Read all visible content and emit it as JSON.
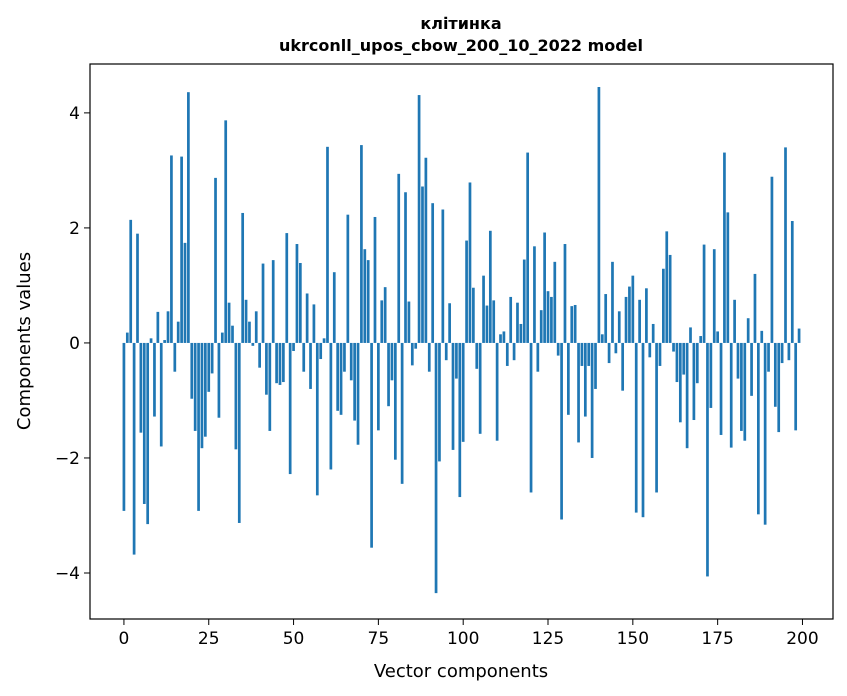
{
  "chart_data": {
    "type": "bar",
    "title": "клітинка",
    "subtitle": "ukrconll_upos_cbow_200_10_2022 model",
    "xlabel": "Vector components",
    "ylabel": "Components values",
    "xlim": [
      -10,
      209
    ],
    "ylim": [
      -4.8,
      4.85
    ],
    "xticks": [
      0,
      25,
      50,
      75,
      100,
      125,
      150,
      175,
      200
    ],
    "yticks": [
      -4,
      -2,
      0,
      2,
      4
    ],
    "ytick_labels": [
      "−4",
      "−2",
      "0",
      "2",
      "4"
    ],
    "grid": false,
    "bar_color": "#1f77b4",
    "values": [
      -2.92,
      0.18,
      2.14,
      -3.68,
      1.9,
      -1.56,
      -2.8,
      -3.15,
      0.08,
      -1.28,
      0.54,
      -1.8,
      0.05,
      0.55,
      3.26,
      -0.5,
      0.37,
      3.24,
      1.74,
      4.36,
      -0.97,
      -1.53,
      -2.92,
      -1.83,
      -1.63,
      -0.85,
      -0.53,
      2.87,
      -1.3,
      0.18,
      3.87,
      0.7,
      0.3,
      -1.85,
      -3.13,
      2.26,
      0.75,
      0.37,
      -0.05,
      0.55,
      -0.43,
      1.38,
      -0.9,
      -1.53,
      1.44,
      -0.7,
      -0.73,
      -0.68,
      1.91,
      -2.28,
      -0.14,
      1.72,
      1.39,
      -0.5,
      0.86,
      -0.8,
      0.67,
      -2.65,
      -0.28,
      0.08,
      3.41,
      -2.2,
      1.23,
      -1.18,
      -1.25,
      -0.5,
      2.23,
      -0.65,
      -1.35,
      -1.77,
      3.44,
      1.63,
      1.44,
      -3.56,
      2.19,
      -1.52,
      0.74,
      0.97,
      -1.1,
      -0.65,
      -2.03,
      2.94,
      -2.45,
      2.62,
      0.72,
      -0.39,
      -0.1,
      4.31,
      2.72,
      3.22,
      -0.5,
      2.43,
      -4.35,
      -2.06,
      2.32,
      -0.3,
      0.69,
      -1.86,
      -0.62,
      -2.68,
      -1.72,
      1.78,
      2.79,
      0.96,
      -0.45,
      -1.58,
      1.17,
      0.65,
      1.95,
      0.74,
      -1.7,
      0.15,
      0.2,
      -0.4,
      0.8,
      -0.3,
      0.7,
      0.33,
      1.45,
      3.31,
      -2.6,
      1.68,
      -0.5,
      0.57,
      1.92,
      0.9,
      0.8,
      1.41,
      -0.22,
      -3.07,
      1.72,
      -1.25,
      0.64,
      0.66,
      -1.73,
      -0.4,
      -1.28,
      -0.4,
      -2.0,
      -0.8,
      4.45,
      0.15,
      0.85,
      -0.35,
      1.41,
      -0.18,
      0.55,
      -0.83,
      0.8,
      0.98,
      1.17,
      -2.95,
      0.75,
      -3.03,
      0.95,
      -0.25,
      0.33,
      -2.6,
      -0.4,
      1.29,
      1.94,
      1.53,
      -0.15,
      -0.68,
      -1.38,
      -0.55,
      -1.83,
      0.27,
      -1.34,
      -0.7,
      0.12,
      1.71,
      -4.06,
      -1.13,
      1.63,
      0.2,
      -1.6,
      3.31,
      2.27,
      -1.82,
      0.75,
      -0.62,
      -1.53,
      -1.7,
      0.43,
      -0.92,
      1.2,
      -2.98,
      0.21,
      -3.16,
      -0.5,
      2.89,
      -1.11,
      -1.55,
      -0.35,
      3.4,
      -0.3,
      2.12,
      -1.52,
      0.25
    ]
  }
}
